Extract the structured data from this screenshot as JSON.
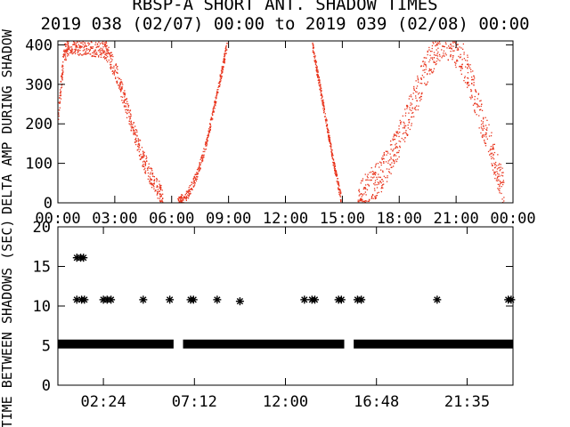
{
  "title_line1": "RBSP-A SHORT ANT. SHADOW TIMES",
  "title_line2": "2019 038 (02/07) 00:00 to 2019 039 (02/08) 00:00",
  "colors": {
    "scatter": "#e8341c",
    "axes": "#000000",
    "background": "#ffffff"
  },
  "chart_data": [
    {
      "type": "scatter",
      "ylabel": "DELTA AMP DURING SHADOW",
      "xlim": [
        0,
        24
      ],
      "ylim": [
        0,
        410
      ],
      "x_tick_labels": [
        "00:00",
        "03:00",
        "06:00",
        "09:00",
        "12:00",
        "15:00",
        "18:00",
        "21:00",
        "00:00"
      ],
      "x_tick_values": [
        0,
        3,
        6,
        9,
        12,
        15,
        18,
        21,
        24
      ],
      "y_tick_labels": [
        "0",
        "100",
        "200",
        "300",
        "400"
      ],
      "y_tick_values": [
        0,
        100,
        200,
        300,
        400
      ],
      "bands": [
        {
          "x": [
            0.0,
            0.3,
            0.6,
            1.0,
            1.5,
            2.0,
            2.5,
            3.0,
            3.5,
            4.0,
            4.5,
            5.0,
            5.5
          ],
          "y": [
            220,
            380,
            405,
            400,
            398,
            396,
            390,
            340,
            260,
            180,
            110,
            55,
            20
          ],
          "spread": 25
        },
        {
          "x": [
            6.3,
            6.8,
            7.3,
            7.8,
            8.2,
            8.6,
            8.9
          ],
          "y": [
            5,
            20,
            70,
            150,
            240,
            330,
            400
          ],
          "spread": 12
        },
        {
          "x": [
            13.4,
            13.7,
            14.0,
            14.3,
            14.6,
            14.9
          ],
          "y": [
            400,
            320,
            240,
            160,
            80,
            15
          ],
          "spread": 12
        },
        {
          "x": [
            15.8,
            16.4,
            17.0,
            17.6,
            18.2,
            18.8,
            19.4,
            20.0,
            20.6,
            21.2,
            21.8,
            22.4,
            23.0,
            23.5
          ],
          "y": [
            10,
            40,
            70,
            120,
            190,
            260,
            340,
            400,
            405,
            380,
            300,
            200,
            110,
            30
          ],
          "spread": 45
        }
      ]
    },
    {
      "type": "scatter",
      "ylabel": "TIME BETWEEN SHADOWS (SEC)",
      "xlim": [
        0,
        24
      ],
      "ylim": [
        0,
        20
      ],
      "x_tick_labels": [
        "02:24",
        "07:12",
        "12:00",
        "16:48",
        "21:35"
      ],
      "x_tick_values": [
        2.4,
        7.2,
        12.0,
        16.8,
        21.58
      ],
      "y_tick_labels": [
        "0",
        "5",
        "10",
        "15",
        "20"
      ],
      "y_tick_values": [
        0,
        5,
        10,
        15,
        20
      ],
      "baseline": {
        "y": 5.2,
        "segments": [
          [
            0,
            6.1
          ],
          [
            6.6,
            15.1
          ],
          [
            15.6,
            24
          ]
        ]
      },
      "points": [
        {
          "x": 1.0,
          "y": 16.1
        },
        {
          "x": 1.2,
          "y": 16.1
        },
        {
          "x": 1.35,
          "y": 16.1
        },
        {
          "x": 1.0,
          "y": 10.8
        },
        {
          "x": 1.25,
          "y": 10.8
        },
        {
          "x": 1.4,
          "y": 10.8
        },
        {
          "x": 2.4,
          "y": 10.8
        },
        {
          "x": 2.6,
          "y": 10.8
        },
        {
          "x": 2.8,
          "y": 10.8
        },
        {
          "x": 4.5,
          "y": 10.8
        },
        {
          "x": 5.9,
          "y": 10.8
        },
        {
          "x": 7.0,
          "y": 10.8
        },
        {
          "x": 7.15,
          "y": 10.8
        },
        {
          "x": 8.4,
          "y": 10.8
        },
        {
          "x": 9.6,
          "y": 10.6
        },
        {
          "x": 13.0,
          "y": 10.8
        },
        {
          "x": 13.4,
          "y": 10.8
        },
        {
          "x": 13.55,
          "y": 10.8
        },
        {
          "x": 14.8,
          "y": 10.8
        },
        {
          "x": 14.95,
          "y": 10.8
        },
        {
          "x": 15.8,
          "y": 10.8
        },
        {
          "x": 16.0,
          "y": 10.8
        },
        {
          "x": 20.0,
          "y": 10.8
        },
        {
          "x": 23.75,
          "y": 10.8
        },
        {
          "x": 23.9,
          "y": 10.8
        }
      ]
    }
  ]
}
